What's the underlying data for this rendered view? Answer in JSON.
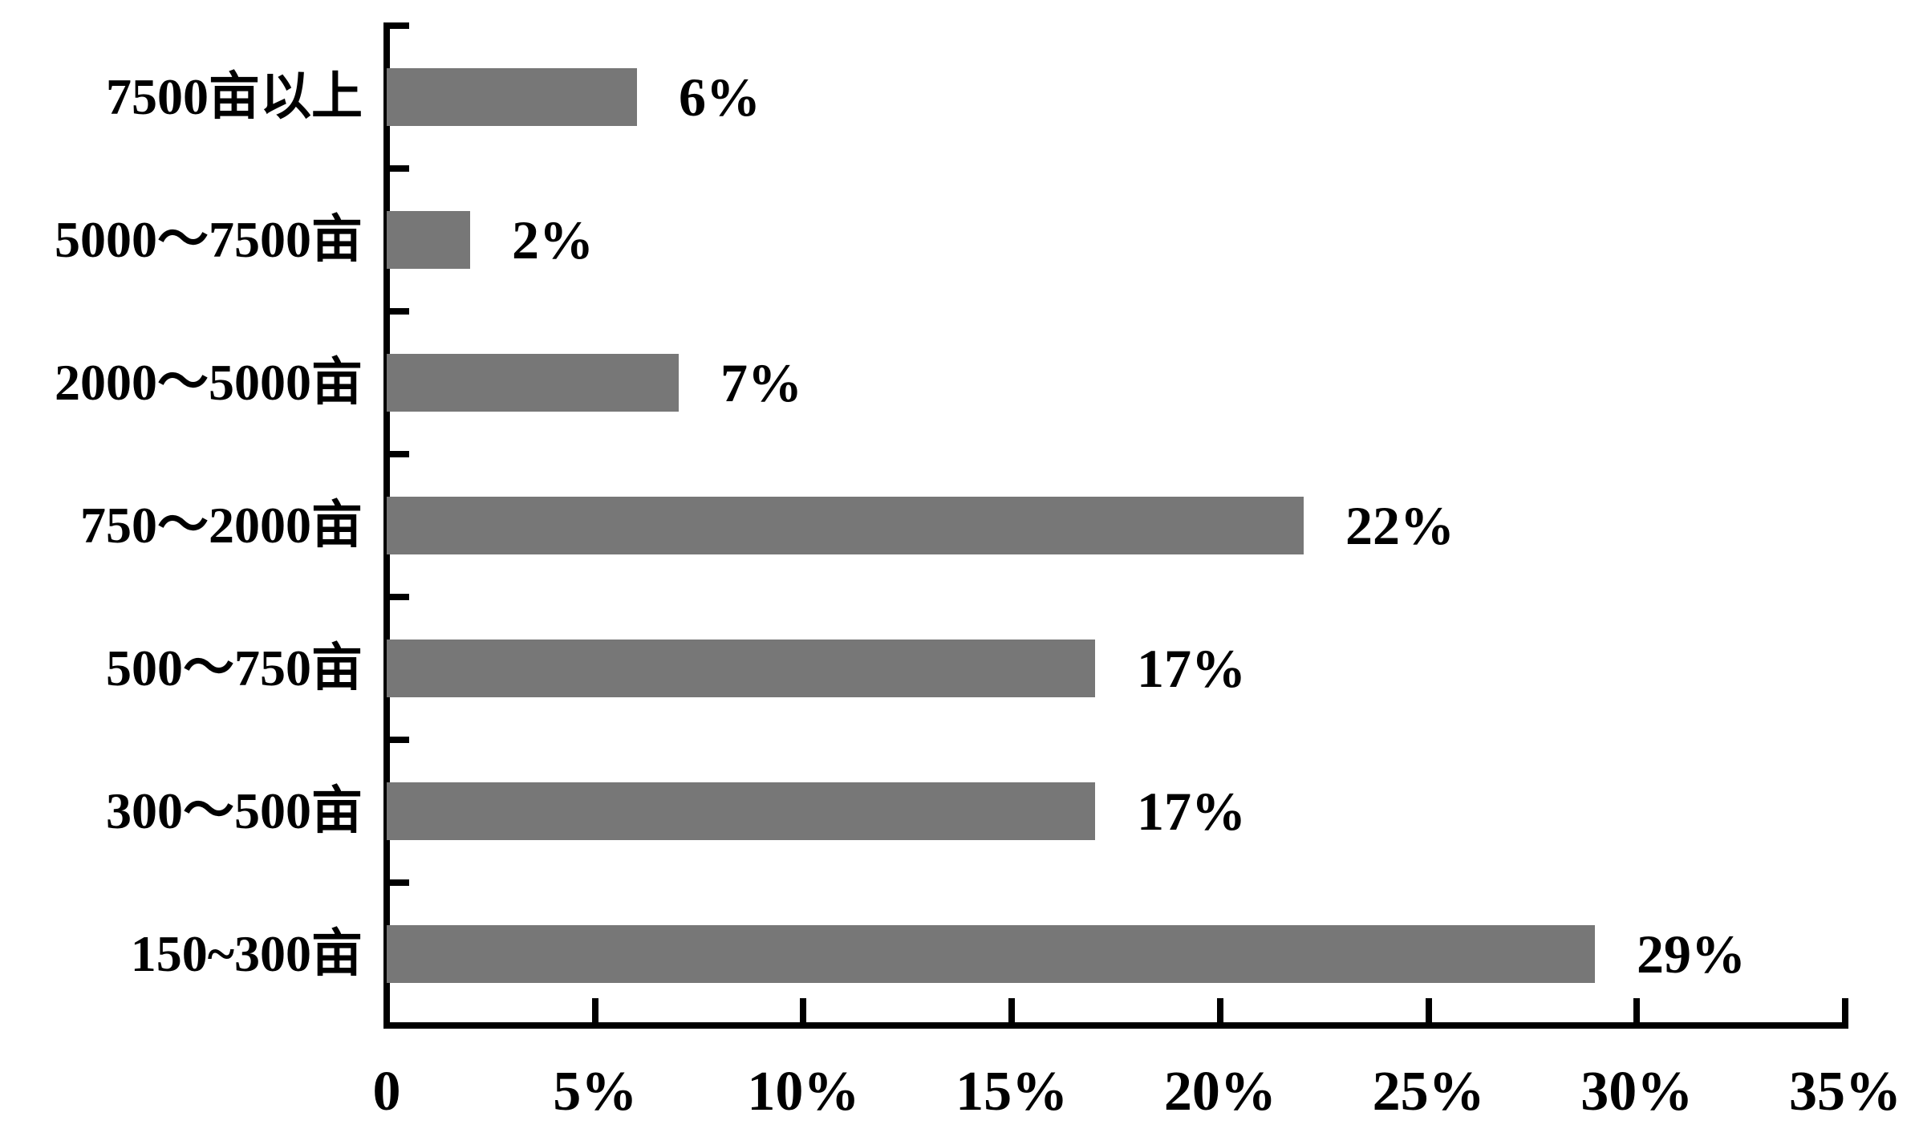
{
  "chart_data": {
    "type": "bar",
    "orientation": "horizontal",
    "title": "",
    "xlabel": "",
    "ylabel": "",
    "xlim": [
      0,
      35
    ],
    "x_tick_step_percent": 5,
    "grid": false,
    "legend": false,
    "bar_color": "#777777",
    "axis_color": "#000000",
    "text_color": "#000000",
    "background_color": "#ffffff",
    "categories": [
      "7500亩以上",
      "5000～7500亩",
      "2000～5000亩",
      "750～2000亩",
      "500～750亩",
      "300～500亩",
      "150~300亩"
    ],
    "values": [
      6,
      2,
      7,
      22,
      17,
      17,
      29
    ],
    "value_labels": [
      "6%",
      "2%",
      "7%",
      "22%",
      "17%",
      "17%",
      "29%"
    ],
    "x_tick_labels": [
      "0",
      "5%",
      "10%",
      "15%",
      "20%",
      "25%",
      "30%",
      "35%"
    ]
  }
}
